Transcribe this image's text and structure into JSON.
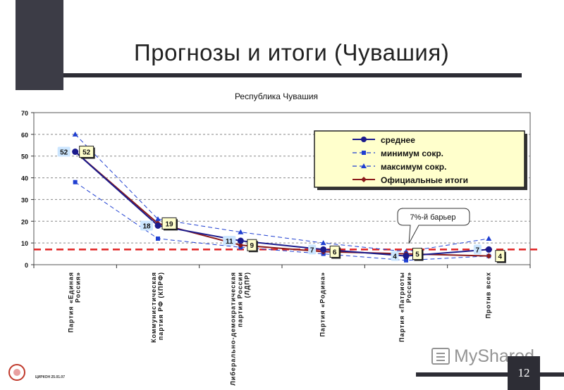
{
  "slide": {
    "title": "Прогнозы и итоги (Чувашия)",
    "page_number": "12",
    "footer_text": "ЦИРКОН 25.01.07",
    "watermark": "MyShared"
  },
  "colors": {
    "average": "#1a1a8c",
    "minimum": "#1f3fd1",
    "maximum": "#1f3fd1",
    "official": "#8b1a1a",
    "barrier": "#e02020",
    "legend_bg": "#ffffcc",
    "label_bg_avg": "#cce6ff",
    "label_bg_official": "#ffffcc"
  },
  "chart_data": {
    "type": "line",
    "title": "Республика Чувашия",
    "categories": [
      "Партия «Единая Россия»",
      "Коммунистическая партия РФ (КПРФ)",
      "Либерально-демократическая партия России (ЛДПР)",
      "Партия «Родина»",
      "Партия «Патриоты России»",
      "Против всех"
    ],
    "ylim": [
      0,
      70
    ],
    "yticks": [
      0,
      10,
      20,
      30,
      40,
      50,
      60,
      70
    ],
    "grid": true,
    "legend_position": "top-right",
    "series": [
      {
        "name": "среднее",
        "style": "solid-circle",
        "values": [
          52,
          18,
          11,
          7,
          4,
          7
        ],
        "labels": [
          "52",
          "18",
          "11",
          "7",
          "4",
          "7"
        ]
      },
      {
        "name": "минимум сокр.",
        "style": "dashed-square",
        "values": [
          38,
          12,
          8,
          5,
          2,
          4
        ]
      },
      {
        "name": "максимум сокр.",
        "style": "dashed-triangle",
        "values": [
          60,
          21,
          15,
          10,
          6,
          12
        ]
      },
      {
        "name": "Официальные итоги",
        "style": "solid-diamond",
        "values": [
          52,
          19,
          9,
          6,
          5,
          4
        ],
        "labels": [
          "52",
          "19",
          "9",
          "6",
          "5",
          "4"
        ]
      }
    ],
    "barrier": {
      "value": 7,
      "label": "7%-й барьер"
    }
  }
}
